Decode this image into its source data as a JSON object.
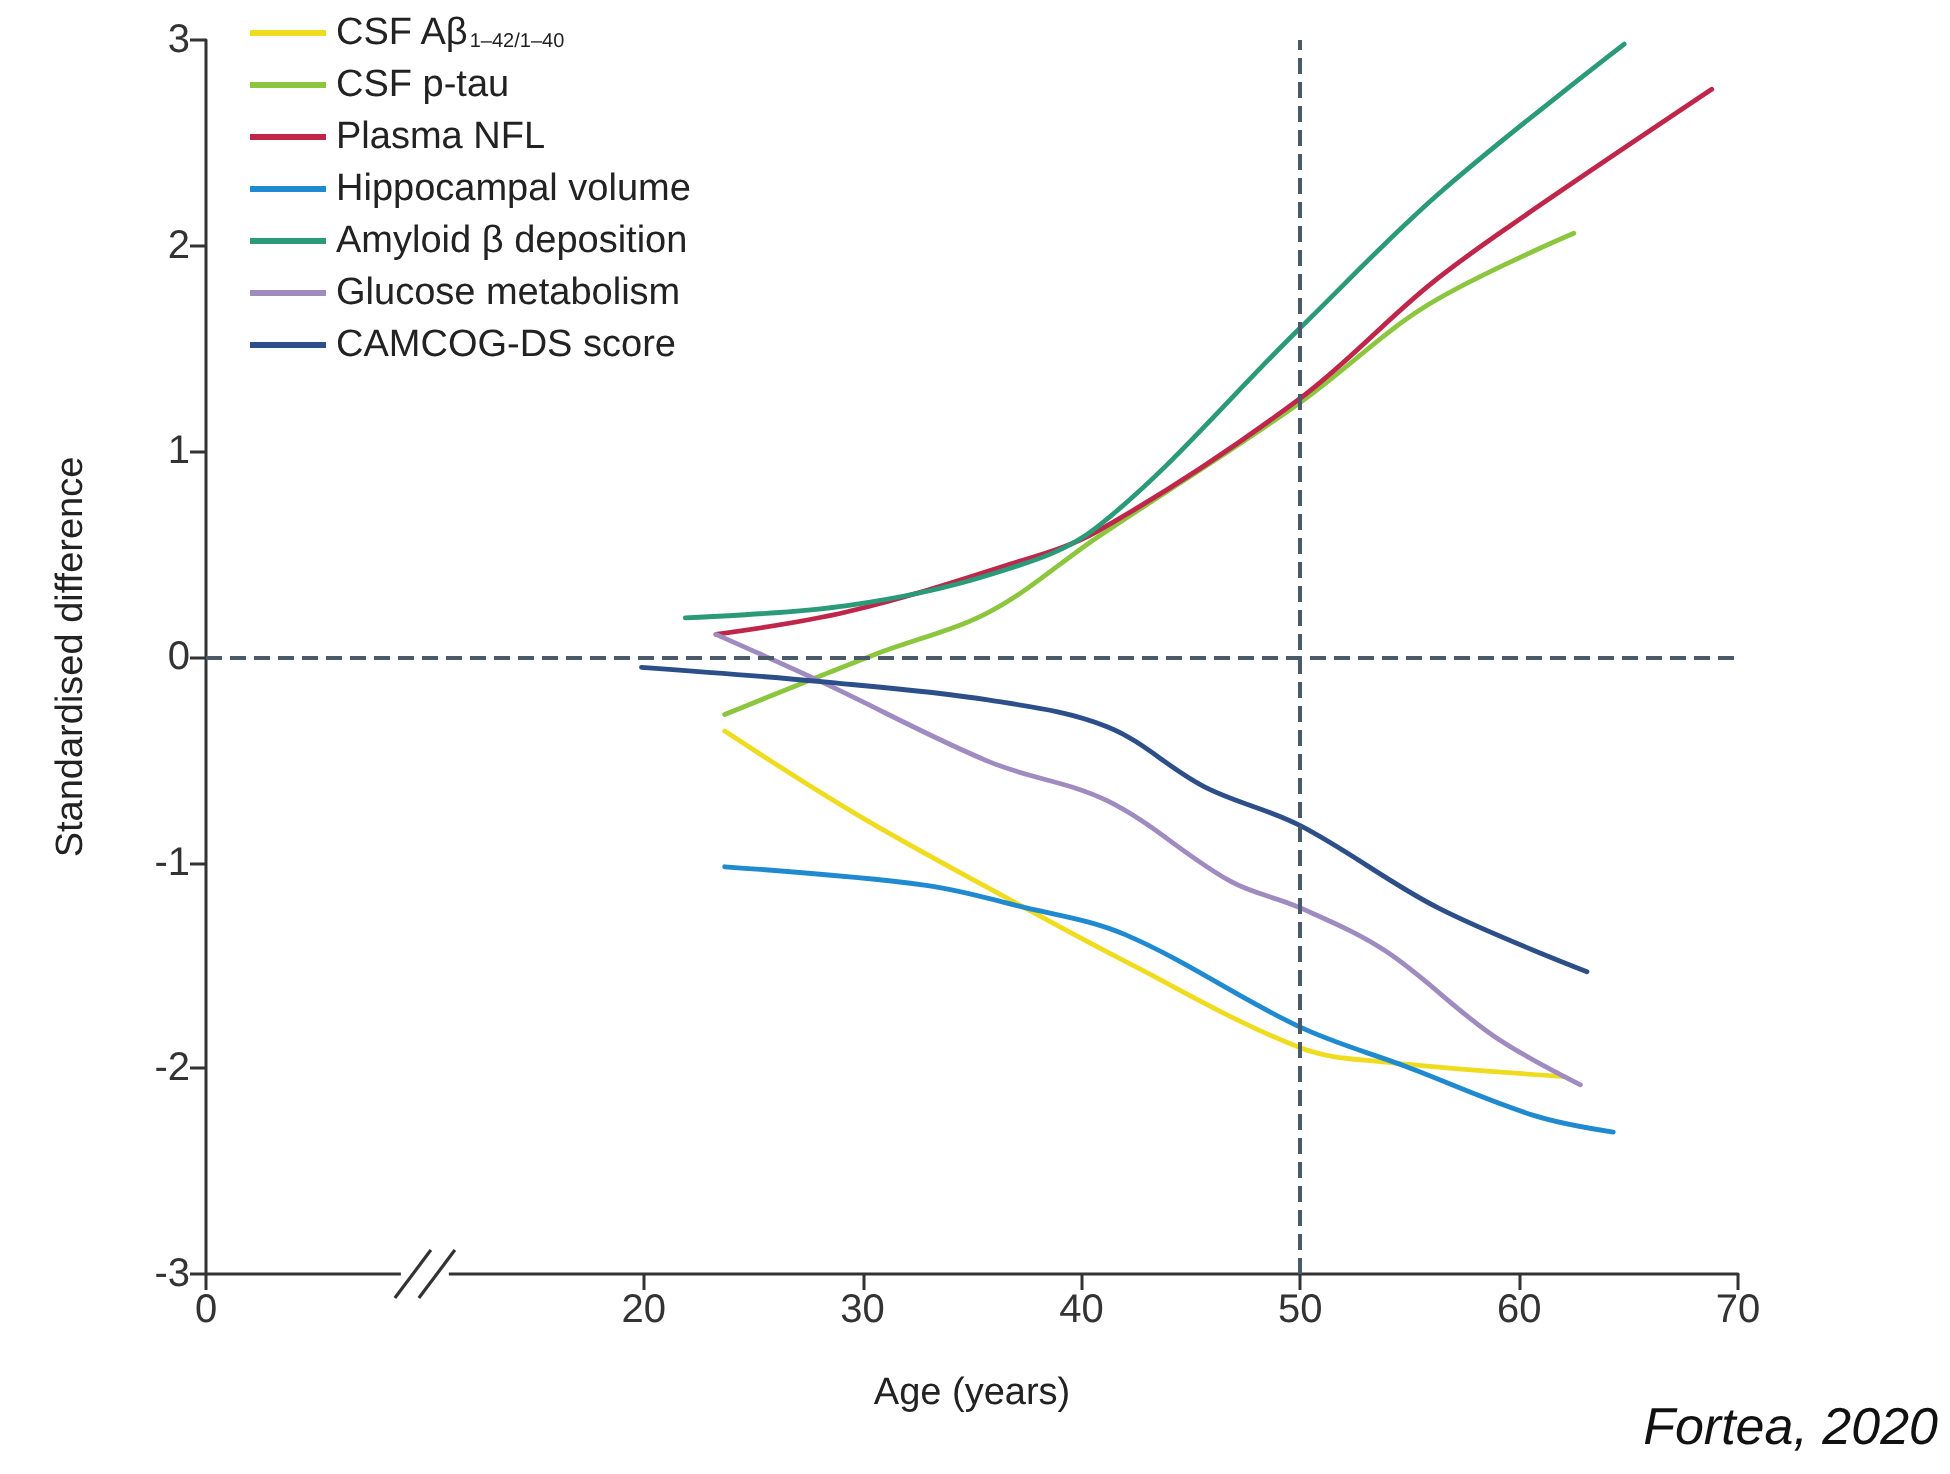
{
  "chart_data": {
    "type": "line",
    "xlabel": "Age (years)",
    "ylabel": "Standardised difference",
    "xlim": [
      0,
      70
    ],
    "xticks": [
      0,
      20,
      30,
      40,
      50,
      60,
      70
    ],
    "ylim": [
      -3,
      3
    ],
    "yticks": [
      -3,
      -2,
      -1,
      0,
      1,
      2,
      3
    ],
    "grid": false,
    "legend": "top left",
    "marker": "none",
    "annotations": [
      "Fortea, 2020"
    ],
    "ref_lines": [
      {
        "axis": "y",
        "value": 0,
        "line_style": "dashed",
        "color": "#4a5a6a"
      },
      {
        "axis": "x",
        "value": 50,
        "line_style": "dashed",
        "color": "#4a5a6a"
      }
    ],
    "series": [
      {
        "name": "CSF Aβ$_{1–42/1–40}$",
        "color": "#f0dc1e",
        "x": [
          23.7,
          29.8,
          36.9,
          42.0,
          50.0,
          53.9,
          62.1
        ],
        "values": [
          -0.36,
          -0.77,
          -1.19,
          -1.48,
          -1.9,
          -1.97,
          -2.04
        ]
      },
      {
        "name": "CSF p-tau",
        "color": "#8cc63f",
        "x": [
          23.7,
          30.5,
          35.8,
          40.7,
          49.9,
          55.8,
          62.5
        ],
        "values": [
          -0.28,
          0.01,
          0.22,
          0.58,
          1.23,
          1.71,
          2.06
        ]
      },
      {
        "name": "Plasma NFL",
        "color": "#c0254a",
        "x": [
          23.3,
          29.3,
          36.4,
          40.7,
          49.9,
          55.8,
          59.5,
          68.8
        ],
        "values": [
          0.11,
          0.22,
          0.44,
          0.61,
          1.25,
          1.8,
          2.09,
          2.76
        ]
      },
      {
        "name": "Hippocampal volume",
        "color": "#1f8ad0",
        "x": [
          23.7,
          32.9,
          37.1,
          42.0,
          50.0,
          54.8,
          60.7,
          64.3
        ],
        "values": [
          -1.02,
          -1.11,
          -1.21,
          -1.35,
          -1.8,
          -1.99,
          -2.23,
          -2.31
        ]
      },
      {
        "name": "Amyloid β deposition",
        "color": "#2a9a78",
        "x": [
          21.9,
          29.3,
          35.8,
          40.7,
          49.9,
          56.3,
          64.8
        ],
        "values": [
          0.19,
          0.25,
          0.4,
          0.63,
          1.59,
          2.25,
          2.98
        ]
      },
      {
        "name": "Glucose metabolism",
        "color": "#a08bc0",
        "x": [
          23.3,
          28.1,
          35.8,
          41.2,
          46.8,
          50.0,
          53.9,
          58.8,
          62.8
        ],
        "values": [
          0.11,
          -0.12,
          -0.51,
          -0.7,
          -1.09,
          -1.22,
          -1.43,
          -1.84,
          -2.08
        ]
      },
      {
        "name": "CAMCOG-DS score",
        "color": "#2c4f8a",
        "x": [
          19.9,
          28.1,
          35.8,
          41.2,
          45.6,
          50.0,
          56.3,
          63.1
        ],
        "values": [
          -0.05,
          -0.12,
          -0.21,
          -0.34,
          -0.63,
          -0.82,
          -1.22,
          -1.53
        ]
      }
    ]
  }
}
